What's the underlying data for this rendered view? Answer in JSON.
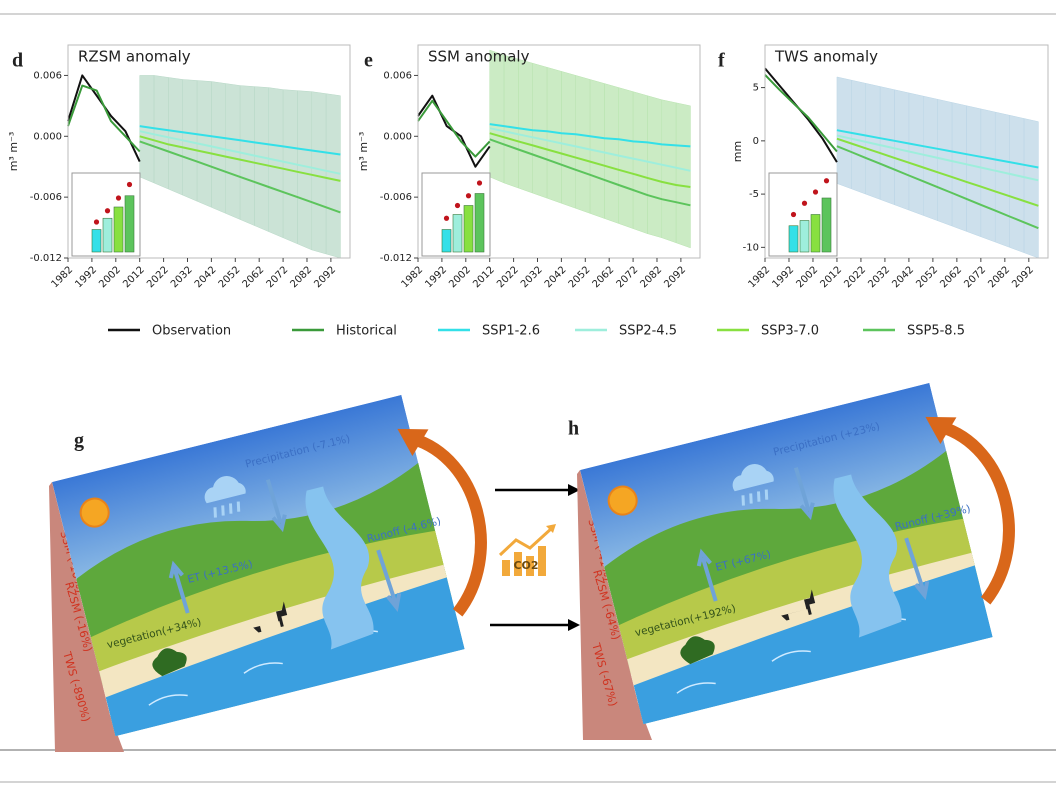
{
  "chart_data": [
    {
      "type": "line",
      "panel": "d",
      "title": "RZSM anomaly",
      "ylabel": "m³ m⁻³",
      "x": [
        1982,
        1988,
        1994,
        2000,
        2006,
        2012,
        2018,
        2024,
        2030,
        2036,
        2042,
        2048,
        2054,
        2060,
        2066,
        2072,
        2078,
        2084,
        2090,
        2096
      ],
      "xlim": [
        1982,
        2100
      ],
      "xticks": [
        1982,
        1992,
        2002,
        2012,
        2022,
        2032,
        2042,
        2052,
        2062,
        2072,
        2082,
        2092
      ],
      "ylim": [
        -0.012,
        0.009
      ],
      "yticks": [
        0.006,
        {
          "value": 0,
          "label": "0.000"
        },
        -0.006,
        -0.012
      ],
      "series": [
        {
          "name": "Observation",
          "color": "#111111",
          "values": [
            0.0015,
            0.006,
            0.004,
            0.002,
            0.0005,
            -0.0025,
            null,
            null,
            null,
            null,
            null,
            null,
            null,
            null,
            null,
            null,
            null,
            null,
            null,
            null
          ]
        },
        {
          "name": "Historical",
          "color": "#3a9a3a",
          "values": [
            0.001,
            0.005,
            0.0045,
            0.0015,
            0.0,
            -0.0015,
            null,
            null,
            null,
            null,
            null,
            null,
            null,
            null,
            null,
            null,
            null,
            null,
            null,
            null
          ]
        },
        {
          "name": "SSP1-2.6",
          "color": "#33e0e8",
          "values": [
            null,
            null,
            null,
            null,
            null,
            0.001,
            0.0008,
            0.0006,
            0.0004,
            0.0002,
            0.0,
            -0.0002,
            -0.0004,
            -0.0006,
            -0.0008,
            -0.001,
            -0.0012,
            -0.0014,
            -0.0016,
            -0.0018
          ]
        },
        {
          "name": "SSP2-4.5",
          "color": "#9eeedc",
          "values": [
            null,
            null,
            null,
            null,
            null,
            0.0005,
            0.0002,
            -0.0001,
            -0.0004,
            -0.0007,
            -0.001,
            -0.0013,
            -0.0016,
            -0.0019,
            -0.0022,
            -0.0025,
            -0.0028,
            -0.0031,
            -0.0034,
            -0.0037
          ]
        },
        {
          "name": "SSP3-7.0",
          "color": "#88e040",
          "values": [
            null,
            null,
            null,
            null,
            null,
            0.0,
            -0.0004,
            -0.0008,
            -0.0011,
            -0.0014,
            -0.0017,
            -0.002,
            -0.0023,
            -0.0026,
            -0.0029,
            -0.0032,
            -0.0035,
            -0.0038,
            -0.0041,
            -0.0044
          ]
        },
        {
          "name": "SSP5-8.5",
          "color": "#5cc45c",
          "values": [
            null,
            null,
            null,
            null,
            null,
            -0.0005,
            -0.001,
            -0.0015,
            -0.002,
            -0.0025,
            -0.003,
            -0.0035,
            -0.004,
            -0.0045,
            -0.005,
            -0.0055,
            -0.006,
            -0.0065,
            -0.007,
            -0.0075
          ]
        }
      ],
      "band_color": "#b9d9c8",
      "band_upper": [
        null,
        null,
        null,
        null,
        null,
        0.006,
        0.006,
        0.0058,
        0.0056,
        0.0055,
        0.0054,
        0.0052,
        0.005,
        0.0049,
        0.0048,
        0.0046,
        0.0045,
        0.0044,
        0.0042,
        0.004
      ],
      "band_lower": [
        null,
        null,
        null,
        null,
        null,
        -0.004,
        -0.0046,
        -0.0052,
        -0.0058,
        -0.0064,
        -0.007,
        -0.0076,
        -0.0082,
        -0.0088,
        -0.0094,
        -0.01,
        -0.0106,
        -0.0112,
        -0.0116,
        -0.012
      ],
      "inset": {
        "ylim": [
          0,
          1
        ],
        "values": [
          0.3,
          0.45,
          0.6,
          0.75
        ],
        "colors": [
          "#33e0e8",
          "#9eeedc",
          "#88e040",
          "#5cc45c"
        ],
        "markers": [
          0.4,
          0.55,
          0.72,
          0.9
        ],
        "marker_color": "#c0141c"
      }
    },
    {
      "type": "line",
      "panel": "e",
      "title": "SSM anomaly",
      "ylabel": "m³ m⁻³",
      "x": [
        1982,
        1988,
        1994,
        2000,
        2006,
        2012,
        2018,
        2024,
        2030,
        2036,
        2042,
        2048,
        2054,
        2060,
        2066,
        2072,
        2078,
        2084,
        2090,
        2096
      ],
      "xlim": [
        1982,
        2100
      ],
      "xticks": [
        1982,
        1992,
        2002,
        2012,
        2022,
        2032,
        2042,
        2052,
        2062,
        2072,
        2082,
        2092
      ],
      "ylim": [
        -0.012,
        0.009
      ],
      "yticks": [
        0.006,
        {
          "value": 0,
          "label": "0.000"
        },
        -0.006,
        -0.012
      ],
      "series": [
        {
          "color": "#111111",
          "values": [
            0.002,
            0.004,
            0.001,
            0.0,
            -0.003,
            -0.001,
            null,
            null,
            null,
            null,
            null,
            null,
            null,
            null,
            null,
            null,
            null,
            null,
            null,
            null
          ]
        },
        {
          "color": "#3a9a3a",
          "values": [
            0.0015,
            0.0035,
            0.0015,
            -0.0005,
            -0.002,
            -0.0005,
            null,
            null,
            null,
            null,
            null,
            null,
            null,
            null,
            null,
            null,
            null,
            null,
            null,
            null
          ]
        },
        {
          "color": "#33e0e8",
          "values": [
            null,
            null,
            null,
            null,
            null,
            0.0012,
            0.001,
            0.0008,
            0.0006,
            0.0005,
            0.0003,
            0.0002,
            0.0,
            -0.0002,
            -0.0003,
            -0.0005,
            -0.0006,
            -0.0008,
            -0.0009,
            -0.001
          ]
        },
        {
          "color": "#9eeedc",
          "values": [
            null,
            null,
            null,
            null,
            null,
            0.0008,
            0.0005,
            0.0002,
            -0.0001,
            -0.0004,
            -0.0007,
            -0.001,
            -0.0013,
            -0.0016,
            -0.0019,
            -0.0022,
            -0.0025,
            -0.0028,
            -0.0031,
            -0.0034
          ]
        },
        {
          "color": "#88e040",
          "values": [
            null,
            null,
            null,
            null,
            null,
            0.0003,
            -0.0001,
            -0.0005,
            -0.0009,
            -0.0013,
            -0.0017,
            -0.0021,
            -0.0025,
            -0.0029,
            -0.0033,
            -0.0037,
            -0.0041,
            -0.0045,
            -0.0048,
            -0.005
          ]
        },
        {
          "color": "#5cc45c",
          "values": [
            null,
            null,
            null,
            null,
            null,
            -0.0003,
            -0.0008,
            -0.0013,
            -0.0018,
            -0.0023,
            -0.0028,
            -0.0033,
            -0.0038,
            -0.0043,
            -0.0048,
            -0.0053,
            -0.0058,
            -0.0062,
            -0.0065,
            -0.0068
          ]
        }
      ],
      "band_color": "#b9e4b0",
      "band_upper": [
        null,
        null,
        null,
        null,
        null,
        0.0085,
        0.008,
        0.0076,
        0.0072,
        0.0068,
        0.0064,
        0.006,
        0.0056,
        0.0052,
        0.0048,
        0.0044,
        0.004,
        0.0036,
        0.0033,
        0.003
      ],
      "band_lower": [
        null,
        null,
        null,
        null,
        null,
        -0.004,
        -0.0046,
        -0.0051,
        -0.0056,
        -0.0061,
        -0.0066,
        -0.0071,
        -0.0076,
        -0.0081,
        -0.0086,
        -0.0091,
        -0.0096,
        -0.01,
        -0.0105,
        -0.011
      ],
      "inset": {
        "ylim": [
          0,
          1
        ],
        "values": [
          0.3,
          0.5,
          0.62,
          0.78
        ],
        "colors": [
          "#33e0e8",
          "#9eeedc",
          "#88e040",
          "#5cc45c"
        ],
        "markers": [
          0.45,
          0.62,
          0.75,
          0.92
        ],
        "marker_color": "#c0141c"
      }
    },
    {
      "type": "line",
      "panel": "f",
      "title": "TWS anomaly",
      "ylabel": "mm",
      "x": [
        1982,
        1988,
        1994,
        2000,
        2006,
        2012,
        2018,
        2024,
        2030,
        2036,
        2042,
        2048,
        2054,
        2060,
        2066,
        2072,
        2078,
        2084,
        2090,
        2096
      ],
      "xlim": [
        1982,
        2100
      ],
      "xticks": [
        1982,
        1992,
        2002,
        2012,
        2022,
        2032,
        2042,
        2052,
        2062,
        2072,
        2082,
        2092
      ],
      "ylim": [
        -11,
        9
      ],
      "yticks": [
        5,
        0,
        -5,
        -10
      ],
      "series": [
        {
          "color": "#111111",
          "values": [
            6.8,
            5.2,
            3.6,
            2.0,
            0.2,
            -2.0,
            null,
            null,
            null,
            null,
            null,
            null,
            null,
            null,
            null,
            null,
            null,
            null,
            null,
            null
          ]
        },
        {
          "color": "#3a9a3a",
          "values": [
            6.2,
            4.8,
            3.5,
            2.2,
            0.6,
            -1.0,
            null,
            null,
            null,
            null,
            null,
            null,
            null,
            null,
            null,
            null,
            null,
            null,
            null,
            null
          ]
        },
        {
          "color": "#33e0e8",
          "values": [
            null,
            null,
            null,
            null,
            null,
            1.0,
            0.75,
            0.5,
            0.25,
            0,
            -0.25,
            -0.5,
            -0.75,
            -1.0,
            -1.25,
            -1.5,
            -1.75,
            -2.0,
            -2.25,
            -2.5
          ]
        },
        {
          "color": "#9eeedc",
          "values": [
            null,
            null,
            null,
            null,
            null,
            0.5,
            0.2,
            -0.1,
            -0.4,
            -0.7,
            -1.0,
            -1.3,
            -1.6,
            -1.9,
            -2.2,
            -2.5,
            -2.8,
            -3.1,
            -3.4,
            -3.7
          ]
        },
        {
          "color": "#88e040",
          "values": [
            null,
            null,
            null,
            null,
            null,
            0.2,
            -0.25,
            -0.7,
            -1.15,
            -1.6,
            -2.05,
            -2.5,
            -2.95,
            -3.4,
            -3.85,
            -4.3,
            -4.75,
            -5.2,
            -5.65,
            -6.1
          ]
        },
        {
          "color": "#5cc45c",
          "values": [
            null,
            null,
            null,
            null,
            null,
            -0.5,
            -1.05,
            -1.6,
            -2.15,
            -2.7,
            -3.25,
            -3.8,
            -4.35,
            -4.9,
            -5.45,
            -6.0,
            -6.55,
            -7.1,
            -7.65,
            -8.2
          ]
        }
      ],
      "band_color": "#bcd6e6",
      "band_upper": [
        null,
        null,
        null,
        null,
        null,
        6.0,
        5.7,
        5.4,
        5.1,
        4.8,
        4.5,
        4.2,
        3.9,
        3.6,
        3.3,
        3.0,
        2.7,
        2.4,
        2.1,
        1.8
      ],
      "band_lower": [
        null,
        null,
        null,
        null,
        null,
        -4.0,
        -4.5,
        -5.0,
        -5.5,
        -6.0,
        -6.5,
        -7.0,
        -7.5,
        -8.0,
        -8.5,
        -9.0,
        -9.5,
        -10.0,
        -10.5,
        -11.0
      ],
      "inset": {
        "ylim": [
          0,
          1
        ],
        "values": [
          0.35,
          0.42,
          0.5,
          0.72
        ],
        "colors": [
          "#33e0e8",
          "#9eeedc",
          "#88e040",
          "#5cc45c"
        ],
        "markers": [
          0.5,
          0.65,
          0.8,
          0.95
        ],
        "marker_color": "#c0141c"
      }
    }
  ],
  "diagrams": [
    {
      "label": "g",
      "precipitation": "Precipitation (-7.1%)",
      "et": "ET (+13.5%)",
      "runoff": "Runoff (-4.6%)",
      "vegetation": "vegetation(+34%)",
      "ssm": "SSM (-10%)",
      "rzsm": "RZSM (-16%)",
      "tws": "TWS (-890%)"
    },
    {
      "label": "h",
      "precipitation": "Precipitation (+23%)",
      "et": "ET (+67%)",
      "runoff": "Runoff (+39%)",
      "vegetation": "vegetation(+192%)",
      "ssm": "SSM (-41%)",
      "rzsm": "RZSM (-64%)",
      "tws": "TWS (-67%)"
    }
  ],
  "co2": "CO2"
}
